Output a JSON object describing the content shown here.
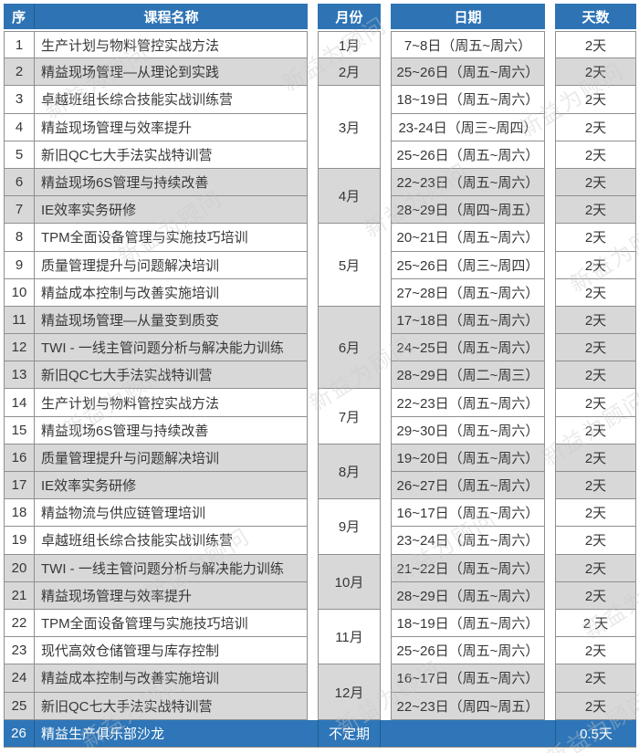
{
  "header": {
    "seq": "序",
    "course": "课程名称",
    "month": "月份",
    "date": "日期",
    "days": "天数"
  },
  "watermark": {
    "text": "新益为顾问"
  },
  "colors": {
    "header_bg": "#2e74b5",
    "alt_row_bg": "#d8d8d8",
    "highlight_row_bg": "#2e76b8",
    "border": "#8f8f8f",
    "text": "#373737"
  },
  "rows": [
    {
      "seq": "1",
      "course": "生产计划与物料管控实战方法",
      "month": "1月",
      "month_span": 1,
      "date": "7~8日（周五~周六）",
      "days": "2天",
      "shade": "white"
    },
    {
      "seq": "2",
      "course": "精益现场管理—从理论到实践",
      "month": "2月",
      "month_span": 1,
      "date": "25~26日（周五~周六）",
      "days": "2天",
      "shade": "gray"
    },
    {
      "seq": "3",
      "course": "卓越班组长综合技能实战训练营",
      "month": "3月",
      "month_span": 3,
      "date": "18~19日（周五~周六）",
      "days": "2天",
      "shade": "white"
    },
    {
      "seq": "4",
      "course": "精益现场管理与效率提升",
      "date": "23-24日（周三~周四）",
      "days": "2天",
      "shade": "white"
    },
    {
      "seq": "5",
      "course": "新旧QC七大手法实战特训营",
      "date": "25~26日（周五~周六）",
      "days": "2天",
      "shade": "white"
    },
    {
      "seq": "6",
      "course": "精益现场6S管理与持续改善",
      "month": "4月",
      "month_span": 2,
      "date": "22~23日（周五~周六）",
      "days": "2天",
      "shade": "gray"
    },
    {
      "seq": "7",
      "course": "IE效率实务研修",
      "date": "28~29日（周四~周五）",
      "days": "2天",
      "shade": "gray"
    },
    {
      "seq": "8",
      "course": "TPM全面设备管理与实施技巧培训",
      "month": "5月",
      "month_span": 3,
      "date": "20~21日（周五~周六）",
      "days": "2天",
      "shade": "white"
    },
    {
      "seq": "9",
      "course": "质量管理提升与问题解决培训",
      "date": "25~26日（周三~周四）",
      "days": "2天",
      "shade": "white"
    },
    {
      "seq": "10",
      "course": "精益成本控制与改善实施培训",
      "date": "27~28日（周五~周六）",
      "days": "2天",
      "shade": "white"
    },
    {
      "seq": "11",
      "course": "精益现场管理—从量变到质变",
      "month": "6月",
      "month_span": 3,
      "date": "17~18日（周五~周六）",
      "days": "2天",
      "shade": "gray"
    },
    {
      "seq": "12",
      "course": "TWI - 一线主管问题分析与解决能力训练",
      "date": "24~25日（周五~周六）",
      "days": "2天",
      "shade": "gray"
    },
    {
      "seq": "13",
      "course": "新旧QC七大手法实战特训营",
      "date": "28~29日（周二~周三）",
      "days": "2天",
      "shade": "gray"
    },
    {
      "seq": "14",
      "course": "生产计划与物料管控实战方法",
      "month": "7月",
      "month_span": 2,
      "date": "22~23日（周五~周六）",
      "days": "2天",
      "shade": "white"
    },
    {
      "seq": "15",
      "course": "精益现场6S管理与持续改善",
      "date": "29~30日（周五~周六）",
      "days": "2天",
      "shade": "white"
    },
    {
      "seq": "16",
      "course": "质量管理提升与问题解决培训",
      "month": "8月",
      "month_span": 2,
      "date": "19~20日（周五~周六）",
      "days": "2天",
      "shade": "gray"
    },
    {
      "seq": "17",
      "course": "IE效率实务研修",
      "date": "26~27日（周五~周六）",
      "days": "2天",
      "shade": "gray"
    },
    {
      "seq": "18",
      "course": "精益物流与供应链管理培训",
      "month": "9月",
      "month_span": 2,
      "date": "16~17日（周五~周六）",
      "days": "2天",
      "shade": "white"
    },
    {
      "seq": "19",
      "course": "卓越班组长综合技能实战训练营",
      "date": "23~24日（周五~周六）",
      "days": "2天",
      "shade": "white"
    },
    {
      "seq": "20",
      "course": "TWI - 一线主管问题分析与解决能力训练",
      "month": "10月",
      "month_span": 2,
      "date": "21~22日（周五~周六）",
      "days": "2天",
      "shade": "gray"
    },
    {
      "seq": "21",
      "course": "精益现场管理与效率提升",
      "date": "28~29日（周五~周六）",
      "days": "2天",
      "shade": "gray"
    },
    {
      "seq": "22",
      "course": "TPM全面设备管理与实施技巧培训",
      "month": "11月",
      "month_span": 2,
      "date": "18~19日（周五~周六）",
      "days": "2 天",
      "shade": "white"
    },
    {
      "seq": "23",
      "course": "现代高效仓储管理与库存控制",
      "date": "25~26日（周五~周六）",
      "days": "2天",
      "shade": "white"
    },
    {
      "seq": "24",
      "course": "精益成本控制与改善实施培训",
      "month": "12月",
      "month_span": 2,
      "date": "16~17日（周五~周六）",
      "days": "2天",
      "shade": "gray"
    },
    {
      "seq": "25",
      "course": "新旧QC七大手法实战特训营",
      "date": "22~23日（周四~周五）",
      "days": "2天",
      "shade": "gray"
    },
    {
      "seq": "26",
      "course": "精益生产俱乐部沙龙",
      "month": "不定期",
      "month_span": 1,
      "date": "",
      "days": "0.5天",
      "shade": "blue"
    }
  ]
}
